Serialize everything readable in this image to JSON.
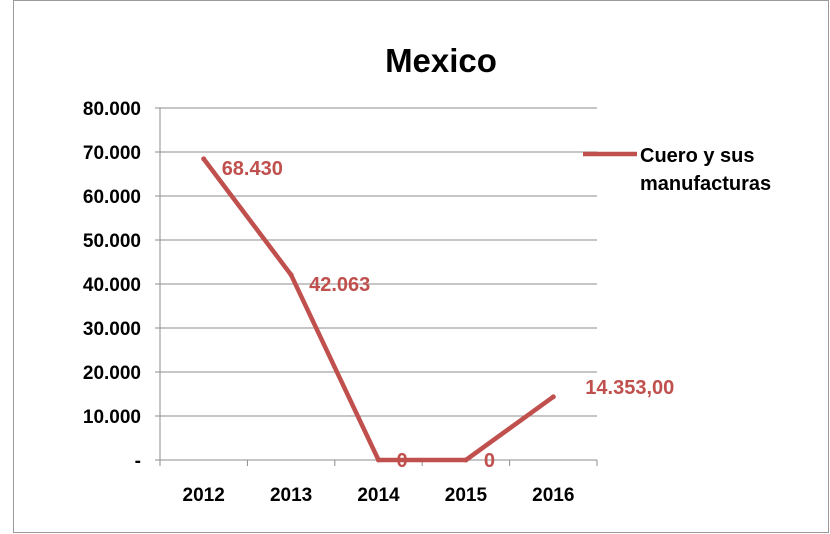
{
  "chart_data": {
    "type": "line",
    "title": "Mexico",
    "categories": [
      "2012",
      "2013",
      "2014",
      "2015",
      "2016"
    ],
    "y_ticks": [
      "-",
      "10.000",
      "20.000",
      "30.000",
      "40.000",
      "50.000",
      "60.000",
      "70.000",
      "80.000"
    ],
    "ylim": [
      0,
      80000
    ],
    "grid": true,
    "legend_position": "right",
    "series": [
      {
        "name": "Cuero y sus manufacturas",
        "legend_lines": [
          "Cuero y sus",
          "manufacturas"
        ],
        "values": [
          68430,
          42063,
          0,
          0,
          14353
        ],
        "data_labels": [
          "68.430",
          "42.063",
          "0",
          "0",
          "14.353,00"
        ],
        "color": "#c0504d"
      }
    ]
  }
}
